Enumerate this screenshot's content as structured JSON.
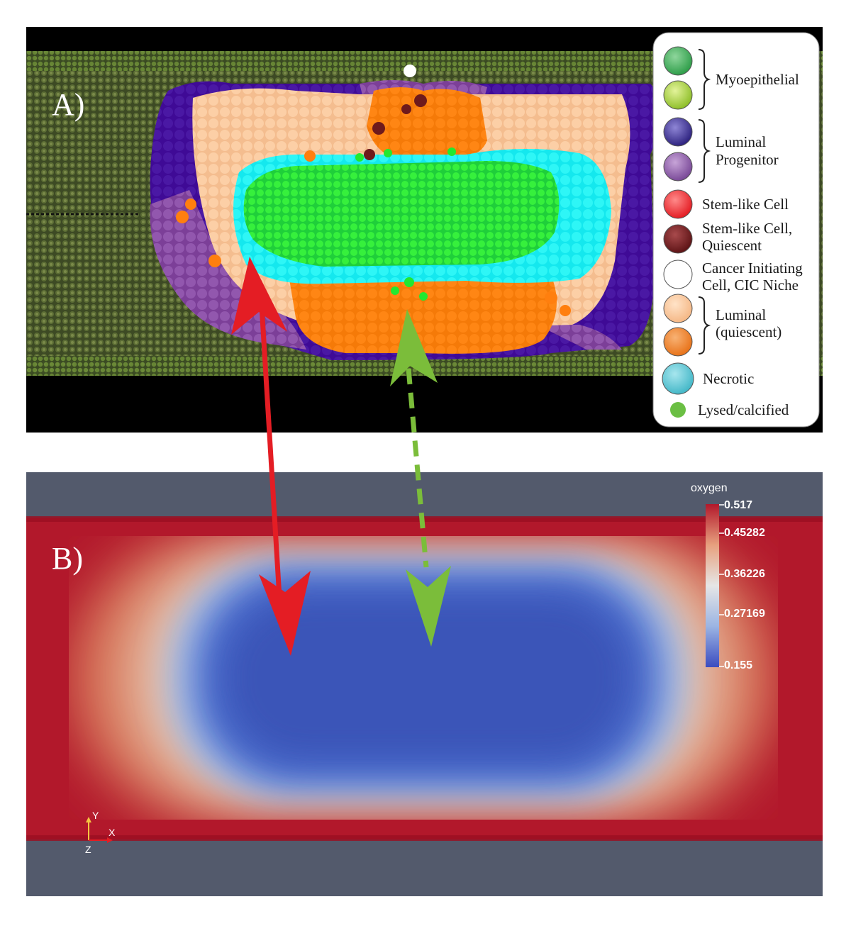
{
  "panels": {
    "a_label": "A)",
    "b_label": "B)"
  },
  "legend": {
    "groups": [
      {
        "label": "Myoepithelial",
        "colors": [
          "#2f9e4a",
          "#a6cf3a"
        ]
      },
      {
        "label_lines": [
          "Luminal",
          "Progenitor"
        ],
        "colors": [
          "#3b2d8c",
          "#8a5aa5"
        ]
      },
      {
        "label": "Stem-like Cell",
        "colors": [
          "#e41d24"
        ]
      },
      {
        "label_lines": [
          "Stem-like Cell,",
          "Quiescent"
        ],
        "colors": [
          "#6e1a1c"
        ]
      },
      {
        "label_lines": [
          "Cancer Initiating",
          "Cell, CIC Niche"
        ],
        "colors": [
          "#ffffff"
        ]
      },
      {
        "label_lines": [
          "Luminal",
          "(quiescent)"
        ],
        "colors": [
          "#f7c39a",
          "#f07f22"
        ]
      },
      {
        "label": "Necrotic",
        "colors": [
          "#5cc6d4"
        ]
      },
      {
        "label": "Lysed/calcified",
        "colors": [
          "#6bbf44"
        ]
      }
    ]
  },
  "colorbar": {
    "title": "oxygen",
    "ticks": [
      "0.517",
      "0.45282",
      "0.36226",
      "0.27169",
      "0.155"
    ],
    "min": 0.155,
    "max": 0.517,
    "colors": [
      "#b2182b",
      "#e7a07e",
      "#e6e6e6",
      "#9bb4e3",
      "#3b4cc0"
    ]
  },
  "axes": {
    "y": "Y",
    "x": "X",
    "z": "Z"
  },
  "colors": {
    "red_arrow": "#e41d24",
    "green_arrow": "#7bbd3a",
    "cyan_necrotic": "#00f0f0",
    "green_lysed": "#22e830",
    "orange": "#ff7f0e",
    "peach": "#fdc89a",
    "purple_dark": "#3f0a96",
    "purple_light": "#8e4fa8"
  }
}
